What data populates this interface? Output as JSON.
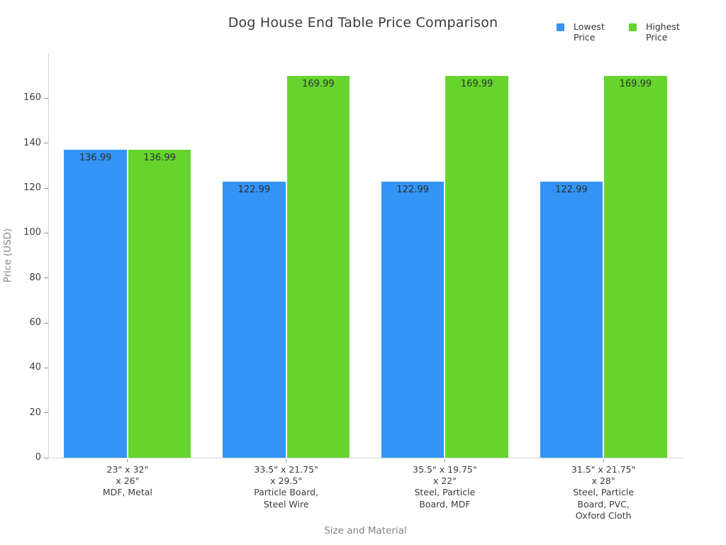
{
  "legend": {
    "items": [
      {
        "label": "Lowest Price",
        "color": "#3394F5"
      },
      {
        "label": "Highest Price",
        "color": "#65D52D"
      }
    ]
  },
  "chart_data": {
    "type": "bar",
    "title": "Dog House End Table Price Comparison",
    "xlabel": "Size and Material",
    "ylabel": "Price (USD)",
    "ylim": [
      0,
      180
    ],
    "yticks": [
      0,
      20,
      40,
      60,
      80,
      100,
      120,
      140,
      160
    ],
    "grid": false,
    "legend_position": "top-right",
    "bar_value_labels": true,
    "categories": [
      [
        "23\" x 32\"",
        "x 26\"",
        "MDF, Metal"
      ],
      [
        "33.5\" x 21.75\"",
        "x 29.5\"",
        "Particle Board,",
        "Steel Wire"
      ],
      [
        "35.5\" x 19.75\"",
        "x 22\"",
        "Steel, Particle",
        "Board, MDF"
      ],
      [
        "31.5\" x 21.75\"",
        "x 28\"",
        "Steel, Particle",
        "Board, PVC,",
        "Oxford Cloth"
      ]
    ],
    "series": [
      {
        "name": "Lowest Price",
        "color": "#3394F5",
        "values": [
          136.99,
          122.99,
          122.99,
          122.99
        ]
      },
      {
        "name": "Highest Price",
        "color": "#65D52D",
        "values": [
          136.99,
          169.99,
          169.99,
          169.99
        ]
      }
    ]
  }
}
